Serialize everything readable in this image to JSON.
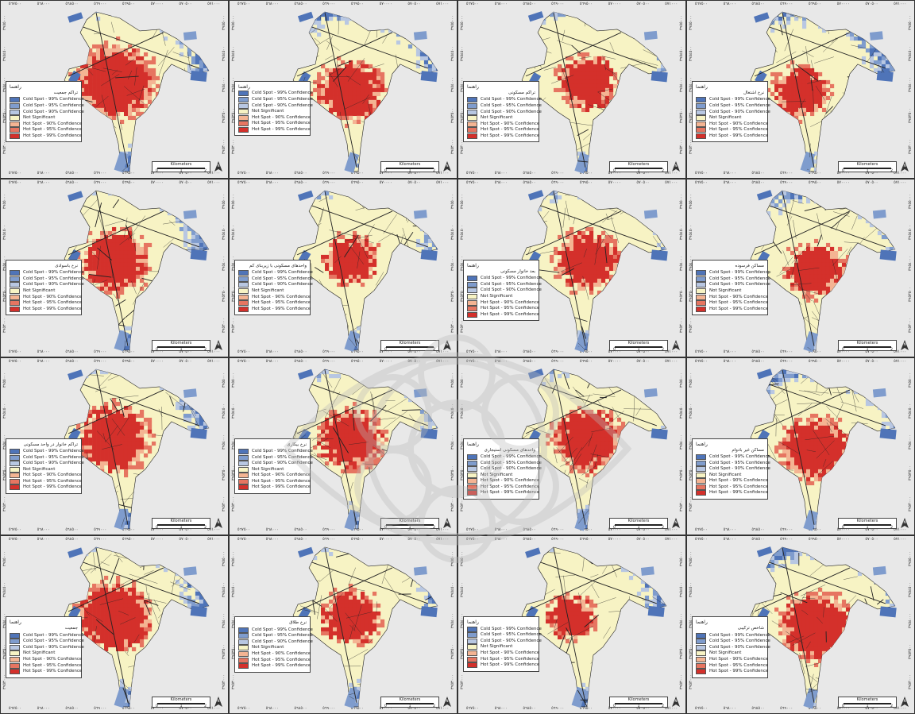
{
  "figure": {
    "rows": 4,
    "cols": 4,
    "tick_labels_x": [
      "٥٦٧٥٠٠",
      "٥٦٨٠٠٠",
      "٥٦٨٥٠٠",
      "٥٦٩٠٠٠",
      "٥٦٩٥٠٠",
      "٥٧٠٠٠٠",
      "٥٧٠٥٠٠",
      "٥٧١٠٠٠"
    ],
    "tick_labels_y": [
      "٣٩٥٥٠٠٠",
      "٣٩٥٤٥٠٠",
      "٣٩٥٤٠٠٠",
      "٣٩٥٣٥٠٠",
      "٣٩٥٣٠٠٠"
    ]
  },
  "colors": {
    "background": "#e8e8e8",
    "cold_99": "#4f74b8",
    "cold_95": "#7f9ccd",
    "cold_90": "#b8c7e2",
    "not_sig": "#f7f3c4",
    "hot_90": "#f4b493",
    "hot_95": "#e67561",
    "hot_99": "#d4302b",
    "street": "#222222"
  },
  "legend_classes": [
    {
      "label": "Cold Spot - 99% Confidence",
      "color": "#4f74b8"
    },
    {
      "label": "Cold Spot - 95% Confidence",
      "color": "#7f9ccd"
    },
    {
      "label": "Cold Spot - 90% Confidence",
      "color": "#b8c7e2"
    },
    {
      "label": "Not Significant",
      "color": "#f7f3c4"
    },
    {
      "label": "Hot Spot - 90% Confidence",
      "color": "#f4b493"
    },
    {
      "label": "Hot Spot - 95% Confidence",
      "color": "#e67561"
    },
    {
      "label": "Hot Spot - 99% Confidence",
      "color": "#d4302b"
    }
  ],
  "scalebar": {
    "title": "Kilometers",
    "ticks": [
      "0",
      "1",
      "2"
    ]
  },
  "north_label": "N",
  "panels": [
    {
      "legend_title": "راهنما",
      "legend_subtitle": "تراکم جمعیت",
      "hot": 0.62,
      "shift": 0
    },
    {
      "legend_title": "راهنما",
      "legend_subtitle": "",
      "hot": 0.48,
      "shift": 1
    },
    {
      "legend_title": "راهنما",
      "legend_subtitle": "تراکم مسکونی",
      "hot": 0.4,
      "shift": 2
    },
    {
      "legend_title": "راهنما",
      "legend_subtitle": "نرخ اشتغال",
      "hot": 0.38,
      "shift": 3
    },
    {
      "legend_title": "",
      "legend_subtitle": "نرخ باسوادی",
      "hot": 0.5,
      "shift": 0
    },
    {
      "legend_title": "",
      "legend_subtitle": "واحدهای مسکونی با زیربنای کم",
      "hot": 0.36,
      "shift": 4
    },
    {
      "legend_title": "راهنما",
      "legend_subtitle": "بعد خانوار مسکونی",
      "hot": 0.45,
      "shift": 2
    },
    {
      "legend_title": "",
      "legend_subtitle": "مساکن فرسوده",
      "hot": 0.42,
      "shift": 5
    },
    {
      "legend_title": "",
      "legend_subtitle": "تراکم خانوار در واحد مسکونی",
      "hot": 0.55,
      "shift": 0
    },
    {
      "legend_title": "",
      "legend_subtitle": "نرخ بیکاری",
      "hot": 0.47,
      "shift": 4
    },
    {
      "legend_title": "راهنما",
      "legend_subtitle": "واحدهای مسکونی استیجاری",
      "hot": 0.5,
      "shift": 2
    },
    {
      "legend_title": "راهنما",
      "legend_subtitle": "مساکن غیر بادوام",
      "hot": 0.52,
      "shift": 5
    },
    {
      "legend_title": "راهنما",
      "legend_subtitle": "جمعیت",
      "hot": 0.58,
      "shift": 0
    },
    {
      "legend_title": "",
      "legend_subtitle": "نرخ طلاق",
      "hot": 0.4,
      "shift": 4
    },
    {
      "legend_title": "راهنما",
      "legend_subtitle": "",
      "hot": 0.3,
      "shift": 6
    },
    {
      "legend_title": "راهنما",
      "legend_subtitle": "شاخص ترکیبی",
      "hot": 0.55,
      "shift": 5
    }
  ]
}
